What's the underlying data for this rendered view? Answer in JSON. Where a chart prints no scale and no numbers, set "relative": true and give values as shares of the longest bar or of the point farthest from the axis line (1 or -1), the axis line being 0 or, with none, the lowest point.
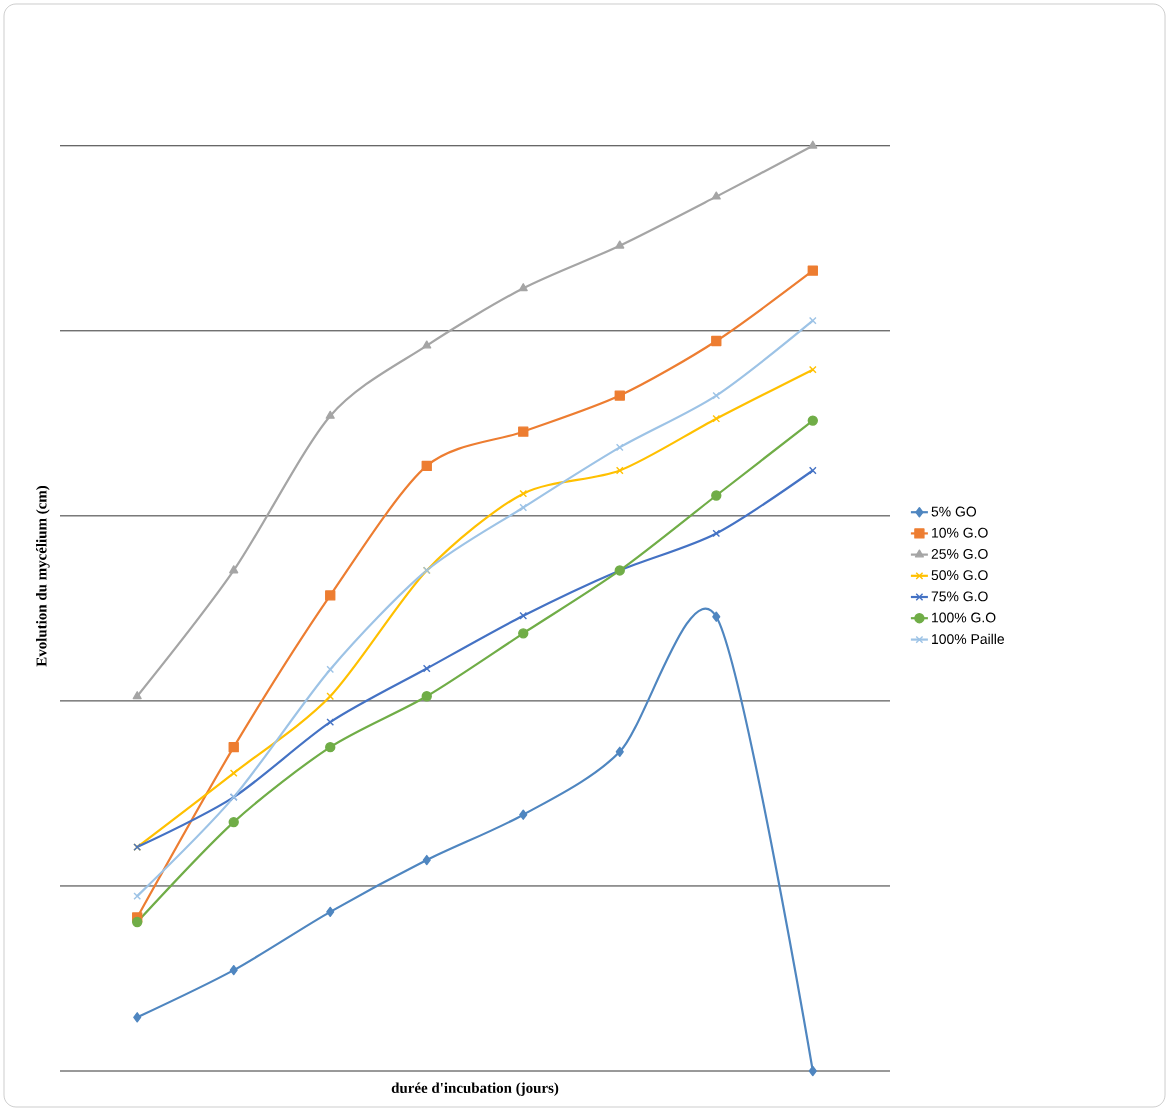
{
  "chart_data": {
    "type": "line",
    "relative": true,
    "xlabel": "durée d'incubation (jours)",
    "ylabel": "Evolution du mycélium (cm)",
    "categories": [
      null,
      null,
      null,
      null,
      null,
      null,
      null,
      null
    ],
    "series": [
      {
        "name": "5% GO",
        "color": "#4f86c0",
        "marker": "diamond",
        "values": [
          0.058,
          0.109,
          0.172,
          0.228,
          0.277,
          0.345,
          0.491,
          0
        ]
      },
      {
        "name": "10% G.O",
        "color": "#ed7d31",
        "marker": "square",
        "values": [
          0.166,
          0.35,
          0.514,
          0.654,
          0.691,
          0.73,
          0.789,
          0.865
        ]
      },
      {
        "name": "25% G.O",
        "color": "#a5a5a5",
        "marker": "triangle",
        "values": [
          0.405,
          0.541,
          0.708,
          0.784,
          0.846,
          0.892,
          0.945,
          1
        ]
      },
      {
        "name": "50% G.O",
        "color": "#ffc000",
        "marker": "cross",
        "values": [
          0.242,
          0.322,
          0.405,
          0.541,
          0.624,
          0.649,
          0.705,
          0.758
        ]
      },
      {
        "name": "75% G.O",
        "color": "#4472c4",
        "marker": "cross",
        "values": [
          0.242,
          0.296,
          0.377,
          0.435,
          0.492,
          0.541,
          0.581,
          0.649
        ]
      },
      {
        "name": "100% G.O",
        "color": "#70ad47",
        "marker": "circle",
        "values": [
          0.161,
          0.269,
          0.35,
          0.405,
          0.473,
          0.541,
          0.622,
          0.703
        ]
      },
      {
        "name": "100% Paille",
        "color": "#9dc3e6",
        "marker": "cross",
        "values": [
          0.189,
          0.296,
          0.434,
          0.541,
          0.609,
          0.674,
          0.73,
          0.811
        ]
      }
    ],
    "grid": "y",
    "legend": "right",
    "line_style": "solid"
  }
}
